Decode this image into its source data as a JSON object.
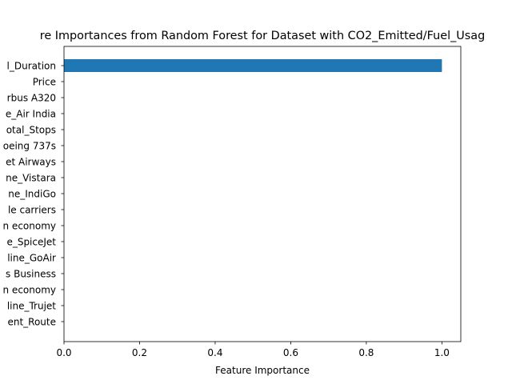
{
  "chart_data": {
    "type": "bar",
    "orientation": "horizontal",
    "title": "re Importances from Random Forest for Dataset with CO2_Emitted/Fuel_Usag",
    "xlabel": "Feature Importance",
    "ylabel": "",
    "xlim": [
      0,
      1.05
    ],
    "xticks": [
      0.0,
      0.2,
      0.4,
      0.6,
      0.8,
      1.0
    ],
    "xtick_labels": [
      "0.0",
      "0.2",
      "0.4",
      "0.6",
      "0.8",
      "1.0"
    ],
    "grid": false,
    "bar_color": "#1f77b4",
    "categories": [
      "l_Duration",
      "Price",
      "rbus A320",
      "e_Air India",
      "otal_Stops",
      "oeing 737s",
      "et Airways",
      "ne_Vistara",
      "ne_IndiGo",
      "le carriers",
      "n economy",
      "e_SpiceJet",
      "line_GoAir",
      "s Business",
      "n economy",
      "line_Trujet",
      "ent_Route"
    ],
    "values": [
      1.0,
      0,
      0,
      0,
      0,
      0,
      0,
      0,
      0,
      0,
      0,
      0,
      0,
      0,
      0,
      0,
      0
    ]
  }
}
